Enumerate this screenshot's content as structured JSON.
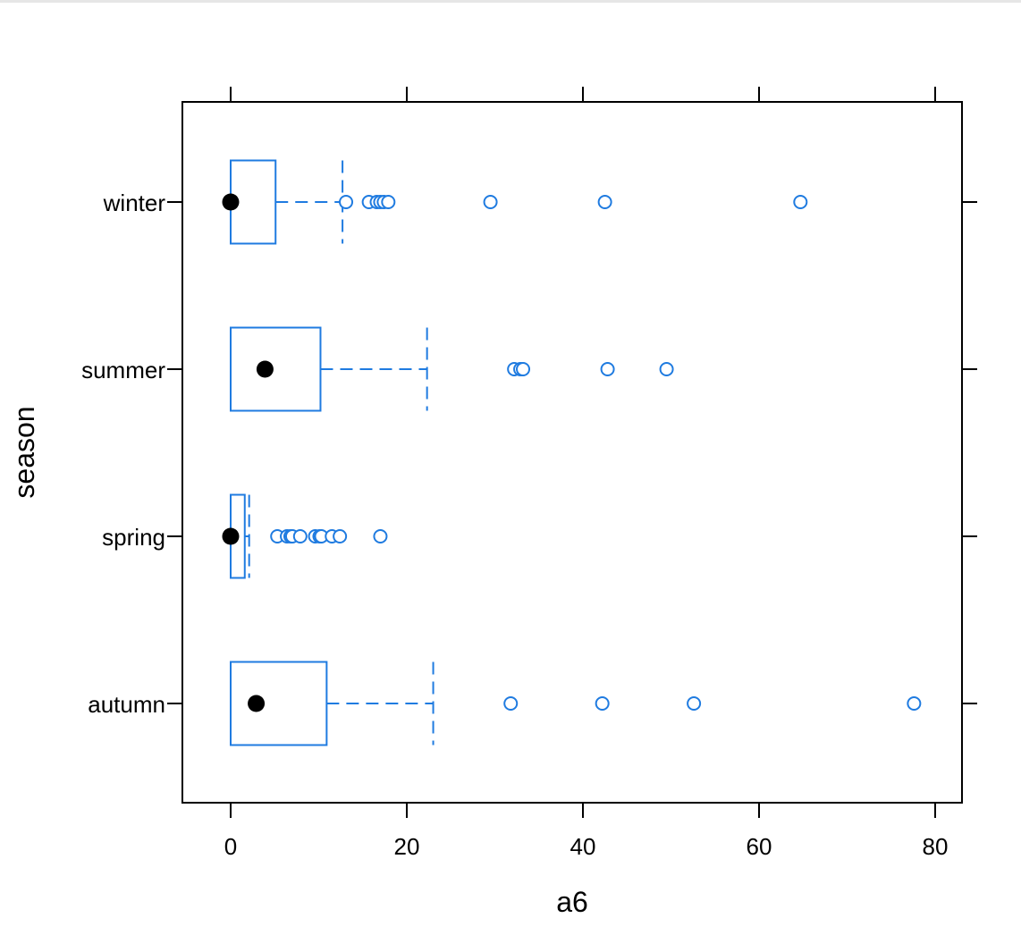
{
  "chart_data": {
    "type": "box",
    "orientation": "horizontal",
    "title": "",
    "xlabel": "a6",
    "ylabel": "season",
    "xlim": [
      -5.5,
      83
    ],
    "x_ticks": [
      0,
      20,
      40,
      60,
      80
    ],
    "categories": [
      "autumn",
      "spring",
      "summer",
      "winter"
    ],
    "grid": false,
    "legend": "none",
    "colors": {
      "box": "#1f7be0",
      "median": "#000000",
      "frame": "#000000"
    },
    "boxes": [
      {
        "category": "autumn",
        "whisker_low": 0,
        "q1": 0,
        "median": 2.9,
        "q3": 10.9,
        "whisker_high": 23,
        "outliers": [
          31.8,
          42.2,
          52.6,
          77.6
        ]
      },
      {
        "category": "spring",
        "whisker_low": 0,
        "q1": 0,
        "median": 0,
        "q3": 1.6,
        "whisker_high": 2.1,
        "outliers": [
          5.3,
          6.4,
          6.8,
          7.0,
          7.9,
          9.6,
          10.1,
          10.3,
          11.5,
          12.4,
          17.0
        ]
      },
      {
        "category": "summer",
        "whisker_low": 0,
        "q1": 0,
        "median": 3.9,
        "q3": 10.2,
        "whisker_high": 22.3,
        "outliers": [
          32.2,
          32.9,
          33.2,
          42.8,
          49.5
        ]
      },
      {
        "category": "winter",
        "whisker_low": 0,
        "q1": 0,
        "median": 0,
        "q3": 5.1,
        "whisker_high": 12.7,
        "outliers": [
          13.1,
          15.7,
          16.6,
          17.0,
          17.4,
          17.9,
          29.5,
          42.5,
          64.7
        ]
      }
    ]
  }
}
